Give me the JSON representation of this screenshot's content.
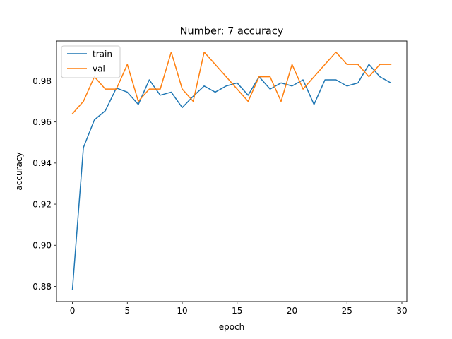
{
  "chart_data": {
    "type": "line",
    "title": "Number: 7 accuracy",
    "xlabel": "epoch",
    "ylabel": "accuracy",
    "xlim": [
      -1.45,
      30.45
    ],
    "ylim": [
      0.8726,
      0.9994
    ],
    "xticks": [
      0,
      5,
      10,
      15,
      20,
      25,
      30
    ],
    "yticks": [
      0.88,
      0.9,
      0.92,
      0.94,
      0.96,
      0.98
    ],
    "xtick_labels": [
      "0",
      "5",
      "10",
      "15",
      "20",
      "25",
      "30"
    ],
    "ytick_labels": [
      "0.88",
      "0.90",
      "0.92",
      "0.94",
      "0.96",
      "0.98"
    ],
    "grid": false,
    "legend_position": "top-left",
    "x": [
      0,
      1,
      2,
      3,
      4,
      5,
      6,
      7,
      8,
      9,
      10,
      11,
      12,
      13,
      14,
      15,
      16,
      17,
      18,
      19,
      20,
      21,
      22,
      23,
      24,
      25,
      26,
      27,
      28,
      29
    ],
    "series": [
      {
        "name": "train",
        "color": "#1f77b4",
        "values": [
          0.8785,
          0.9475,
          0.961,
          0.9655,
          0.9765,
          0.9745,
          0.9685,
          0.9805,
          0.973,
          0.9745,
          0.967,
          0.9725,
          0.9775,
          0.9745,
          0.9775,
          0.979,
          0.973,
          0.982,
          0.976,
          0.979,
          0.9775,
          0.9805,
          0.9685,
          0.9805,
          0.9805,
          0.9775,
          0.979,
          0.988,
          0.982,
          0.979
        ]
      },
      {
        "name": "val",
        "color": "#ff7f0e",
        "values": [
          0.964,
          0.97,
          0.982,
          0.976,
          0.976,
          0.988,
          0.97,
          0.976,
          0.976,
          0.994,
          0.976,
          0.97,
          0.994,
          0.988,
          0.982,
          0.976,
          0.97,
          0.982,
          0.982,
          0.97,
          0.988,
          0.976,
          0.982,
          0.988,
          0.994,
          0.988,
          0.988,
          0.982,
          0.988,
          0.988
        ]
      }
    ]
  }
}
